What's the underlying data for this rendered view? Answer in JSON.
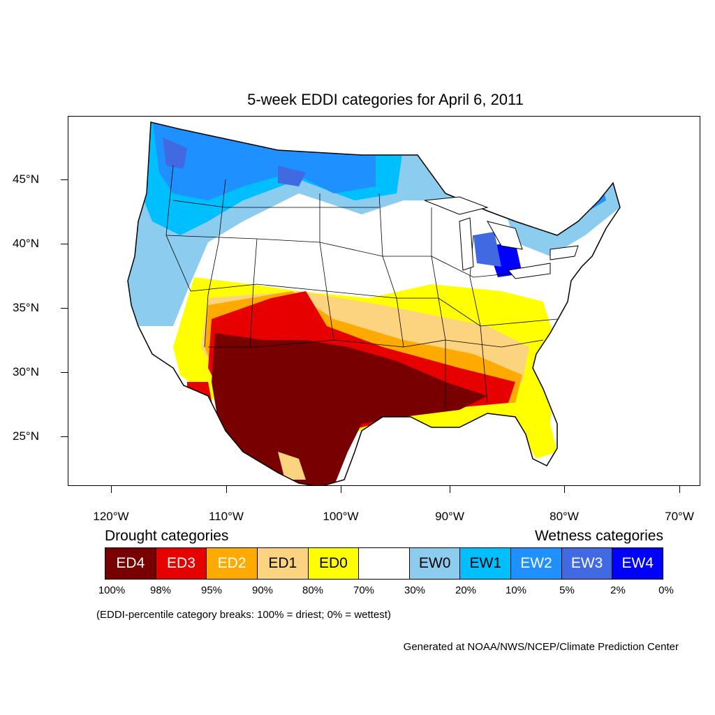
{
  "title": "5-week EDDI categories for April 6, 2011",
  "y_axis": {
    "ticks": [
      "45°N",
      "40°N",
      "35°N",
      "30°N",
      "25°N"
    ]
  },
  "x_axis": {
    "ticks": [
      "120°W",
      "110°W",
      "100°W",
      "90°W",
      "80°W",
      "70°W"
    ]
  },
  "legend": {
    "drought_heading": "Drought categories",
    "wetness_heading": "Wetness categories",
    "categories": [
      {
        "label": "ED4",
        "color": "#780000",
        "text_color": "#ffffff"
      },
      {
        "label": "ED3",
        "color": "#e60000",
        "text_color": "#ffffff"
      },
      {
        "label": "ED2",
        "color": "#ffaa00",
        "text_color": "#ffffff"
      },
      {
        "label": "ED1",
        "color": "#fcd37f",
        "text_color": "#000000"
      },
      {
        "label": "ED0",
        "color": "#ffff00",
        "text_color": "#000000"
      },
      {
        "label": "",
        "color": "#ffffff",
        "text_color": "#000000"
      },
      {
        "label": "EW0",
        "color": "#8ccdef",
        "text_color": "#000000"
      },
      {
        "label": "EW1",
        "color": "#00bfff",
        "text_color": "#000000"
      },
      {
        "label": "EW2",
        "color": "#1e90ff",
        "text_color": "#ffffff"
      },
      {
        "label": "EW3",
        "color": "#4169e1",
        "text_color": "#ffffff"
      },
      {
        "label": "EW4",
        "color": "#0000ff",
        "text_color": "#ffffff"
      }
    ],
    "breaks": [
      "100%",
      "98%",
      "95%",
      "90%",
      "80%",
      "70%",
      "30%",
      "20%",
      "10%",
      "5%",
      "2%",
      "0%"
    ]
  },
  "note": "(EDDI-percentile category breaks: 100% = driest; 0% = wettest)",
  "credit": "Generated at NOAA/NWS/NCEP/Climate Prediction Center"
}
